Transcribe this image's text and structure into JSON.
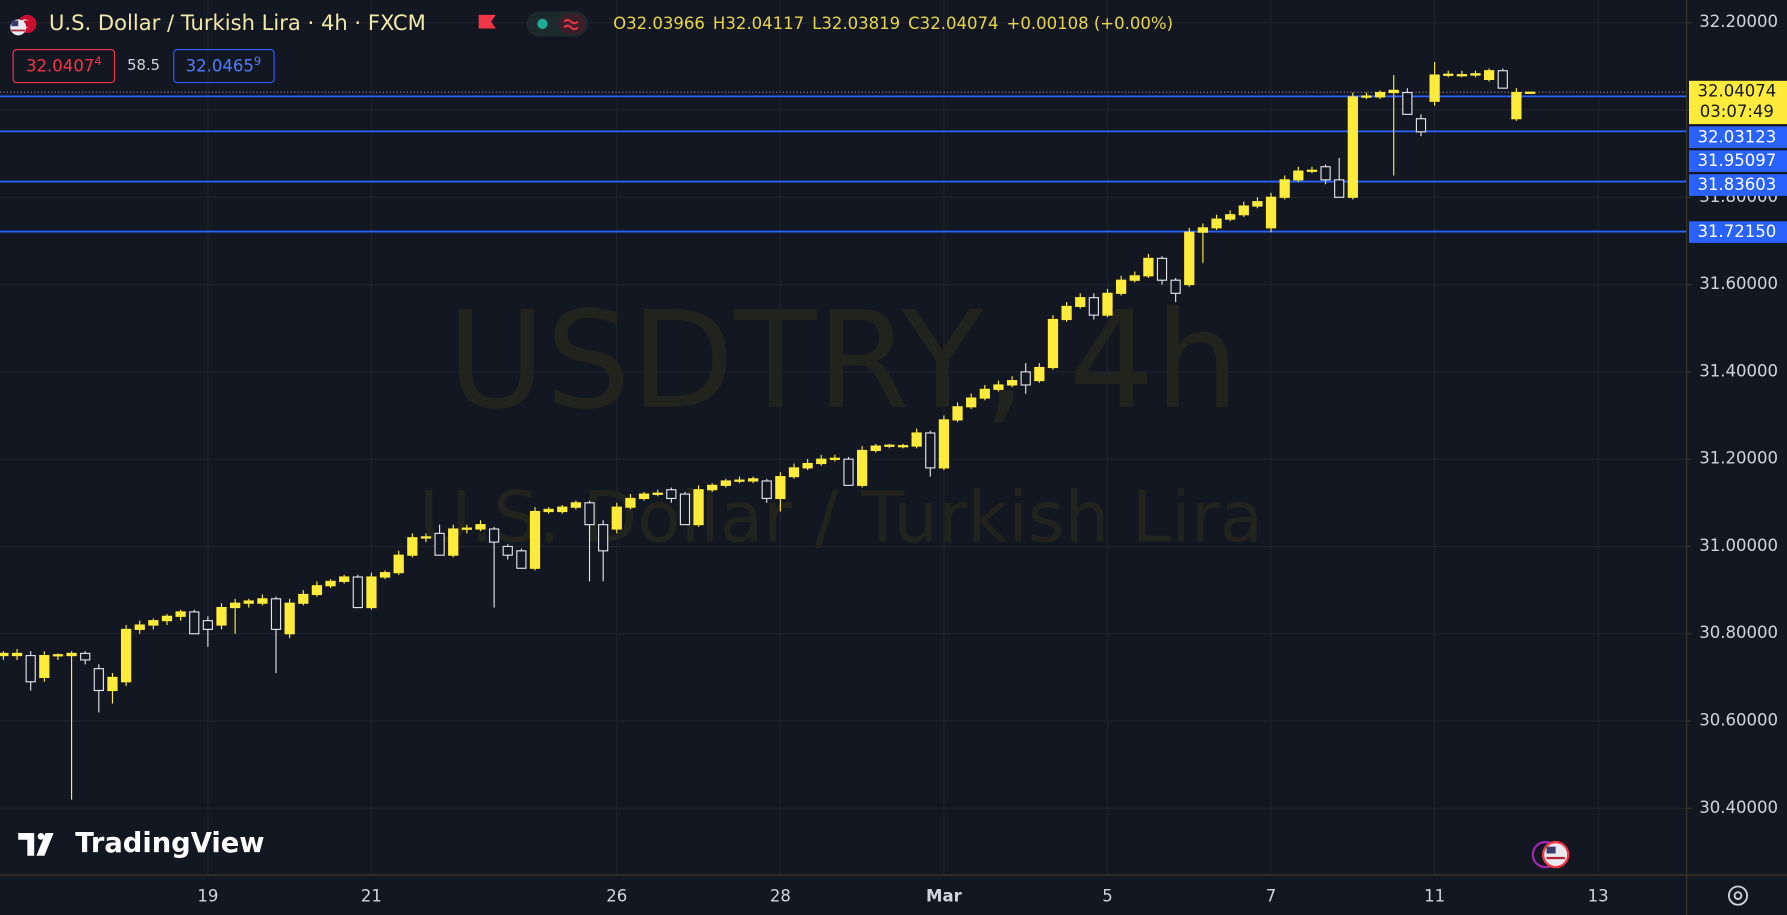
{
  "header": {
    "title": "U.S. Dollar / Turkish Lira · 4h · FXCM",
    "ohlc": [
      "O32.03966",
      "H32.04117",
      "L32.03819",
      "C32.04074",
      "+0.00108 (+0.00%)"
    ],
    "bid": "32.0407",
    "bid_pip": "4",
    "spread": "58.5",
    "ask": "32.0465",
    "ask_pip": "9"
  },
  "watermark": [
    "USDTRY, 4h",
    "U.S. Dollar / Turkish Lira"
  ],
  "logo": "TradingView",
  "chart_data": {
    "type": "candlestick",
    "categories": [
      null,
      null,
      null,
      null,
      null,
      null,
      null,
      null,
      null,
      null,
      null,
      null,
      null,
      null,
      null,
      "19",
      null,
      null,
      null,
      null,
      null,
      null,
      null,
      null,
      null,
      null,
      null,
      "21",
      null,
      null,
      null,
      null,
      null,
      null,
      null,
      null,
      null,
      null,
      null,
      null,
      null,
      null,
      null,
      null,
      null,
      "26",
      null,
      null,
      null,
      null,
      null,
      null,
      null,
      null,
      null,
      null,
      null,
      "28",
      null,
      null,
      null,
      null,
      null,
      null,
      null,
      null,
      null,
      null,
      null,
      "Mar",
      null,
      null,
      null,
      null,
      null,
      null,
      null,
      null,
      null,
      null,
      null,
      "5",
      null,
      null,
      null,
      null,
      null,
      null,
      null,
      null,
      null,
      null,
      null,
      "7",
      null,
      null,
      null,
      null,
      null,
      null,
      null,
      null,
      null,
      null,
      null,
      "11",
      null,
      null,
      null,
      null,
      null,
      null,
      null,
      null,
      null,
      null,
      null,
      "13"
    ],
    "candles": [
      [
        30.75,
        30.76,
        30.74,
        30.755
      ],
      [
        30.75,
        30.765,
        30.74,
        30.755
      ],
      [
        30.75,
        30.76,
        30.67,
        30.69
      ],
      [
        30.7,
        30.76,
        30.69,
        30.75
      ],
      [
        30.75,
        30.755,
        30.74,
        30.752
      ],
      [
        30.75,
        30.76,
        30.42,
        30.755
      ],
      [
        30.755,
        30.76,
        30.73,
        30.74
      ],
      [
        30.72,
        30.73,
        30.62,
        30.67
      ],
      [
        30.67,
        30.71,
        30.64,
        30.7
      ],
      [
        30.69,
        30.82,
        30.68,
        30.81
      ],
      [
        30.81,
        30.83,
        30.8,
        30.82
      ],
      [
        30.82,
        30.835,
        30.81,
        30.83
      ],
      [
        30.83,
        30.845,
        30.82,
        30.84
      ],
      [
        30.84,
        30.855,
        30.83,
        30.85
      ],
      [
        30.85,
        30.855,
        30.8,
        30.8
      ],
      [
        30.83,
        30.84,
        30.77,
        30.81
      ],
      [
        30.82,
        30.87,
        30.81,
        30.86
      ],
      [
        30.86,
        30.88,
        30.8,
        30.87
      ],
      [
        30.87,
        30.88,
        30.86,
        30.875
      ],
      [
        30.87,
        30.89,
        30.865,
        30.88
      ],
      [
        30.88,
        30.885,
        30.71,
        30.81
      ],
      [
        30.8,
        30.88,
        30.79,
        30.87
      ],
      [
        30.87,
        30.9,
        30.865,
        30.89
      ],
      [
        30.89,
        30.92,
        30.885,
        30.91
      ],
      [
        30.91,
        30.925,
        30.905,
        30.92
      ],
      [
        30.92,
        30.935,
        30.915,
        30.93
      ],
      [
        30.93,
        30.935,
        30.86,
        30.86
      ],
      [
        30.86,
        30.94,
        30.855,
        30.93
      ],
      [
        30.93,
        30.945,
        30.925,
        30.94
      ],
      [
        30.94,
        30.99,
        30.935,
        30.98
      ],
      [
        30.98,
        31.03,
        30.975,
        31.02
      ],
      [
        31.02,
        31.03,
        31.01,
        31.022
      ],
      [
        31.03,
        31.05,
        30.98,
        30.98
      ],
      [
        30.98,
        31.05,
        30.975,
        31.04
      ],
      [
        31.04,
        31.05,
        31.03,
        31.042
      ],
      [
        31.04,
        31.06,
        31.035,
        31.05
      ],
      [
        31.04,
        31.045,
        30.86,
        31.01
      ],
      [
        31.0,
        31.005,
        30.97,
        30.98
      ],
      [
        30.99,
        30.995,
        30.95,
        30.95
      ],
      [
        30.95,
        31.09,
        30.945,
        31.08
      ],
      [
        31.08,
        31.09,
        31.075,
        31.085
      ],
      [
        31.08,
        31.095,
        31.075,
        31.09
      ],
      [
        31.09,
        31.105,
        31.085,
        31.1
      ],
      [
        31.1,
        31.105,
        30.92,
        31.05
      ],
      [
        31.05,
        31.06,
        30.92,
        30.99
      ],
      [
        31.04,
        31.1,
        31.03,
        31.09
      ],
      [
        31.09,
        31.12,
        31.085,
        31.11
      ],
      [
        31.11,
        31.125,
        31.105,
        31.12
      ],
      [
        31.12,
        31.13,
        31.115,
        31.122
      ],
      [
        31.13,
        31.135,
        31.1,
        31.11
      ],
      [
        31.12,
        31.125,
        31.05,
        31.05
      ],
      [
        31.05,
        31.14,
        31.045,
        31.13
      ],
      [
        31.13,
        31.145,
        31.125,
        31.14
      ],
      [
        31.14,
        31.155,
        31.135,
        31.15
      ],
      [
        31.15,
        31.16,
        31.145,
        31.152
      ],
      [
        31.15,
        31.16,
        31.145,
        31.155
      ],
      [
        31.15,
        31.155,
        31.1,
        31.11
      ],
      [
        31.11,
        31.17,
        31.08,
        31.16
      ],
      [
        31.16,
        31.19,
        31.155,
        31.18
      ],
      [
        31.18,
        31.2,
        31.175,
        31.19
      ],
      [
        31.19,
        31.21,
        31.185,
        31.2
      ],
      [
        31.2,
        31.21,
        31.195,
        31.202
      ],
      [
        31.2,
        31.205,
        31.14,
        31.14
      ],
      [
        31.14,
        31.23,
        31.135,
        31.22
      ],
      [
        31.22,
        31.235,
        31.215,
        31.23
      ],
      [
        31.23,
        31.235,
        31.225,
        31.232
      ],
      [
        31.23,
        31.235,
        31.225,
        31.231
      ],
      [
        31.23,
        31.27,
        31.225,
        31.26
      ],
      [
        31.26,
        31.265,
        31.16,
        31.18
      ],
      [
        31.18,
        31.3,
        31.175,
        31.29
      ],
      [
        31.29,
        31.33,
        31.285,
        31.32
      ],
      [
        31.32,
        31.35,
        31.315,
        31.34
      ],
      [
        31.34,
        31.37,
        31.335,
        31.36
      ],
      [
        31.36,
        31.38,
        31.355,
        31.37
      ],
      [
        31.37,
        31.39,
        31.365,
        31.38
      ],
      [
        31.4,
        31.42,
        31.35,
        31.37
      ],
      [
        31.38,
        31.42,
        31.375,
        31.41
      ],
      [
        31.41,
        31.53,
        31.405,
        31.52
      ],
      [
        31.52,
        31.56,
        31.515,
        31.55
      ],
      [
        31.55,
        31.58,
        31.545,
        31.57
      ],
      [
        31.57,
        31.58,
        31.52,
        31.53
      ],
      [
        31.53,
        31.59,
        31.525,
        31.58
      ],
      [
        31.58,
        31.62,
        31.575,
        31.61
      ],
      [
        31.61,
        31.63,
        31.605,
        31.62
      ],
      [
        31.62,
        31.67,
        31.615,
        31.66
      ],
      [
        31.66,
        31.665,
        31.6,
        31.61
      ],
      [
        31.61,
        31.615,
        31.56,
        31.58
      ],
      [
        31.6,
        31.73,
        31.595,
        31.72
      ],
      [
        31.72,
        31.74,
        31.65,
        31.73
      ],
      [
        31.73,
        31.76,
        31.725,
        31.75
      ],
      [
        31.75,
        31.77,
        31.745,
        31.76
      ],
      [
        31.76,
        31.79,
        31.755,
        31.78
      ],
      [
        31.78,
        31.8,
        31.775,
        31.79
      ],
      [
        31.73,
        31.81,
        31.72,
        31.8
      ],
      [
        31.8,
        31.85,
        31.795,
        31.84
      ],
      [
        31.84,
        31.87,
        31.835,
        31.86
      ],
      [
        31.86,
        31.87,
        31.855,
        31.862
      ],
      [
        31.87,
        31.875,
        31.83,
        31.84
      ],
      [
        31.84,
        31.89,
        31.8,
        31.8
      ],
      [
        31.8,
        32.04,
        31.795,
        32.03
      ],
      [
        32.03,
        32.04,
        32.025,
        32.032
      ],
      [
        32.03,
        32.045,
        32.025,
        32.04
      ],
      [
        32.04,
        32.08,
        31.85,
        32.045
      ],
      [
        32.04,
        32.05,
        31.99,
        31.99
      ],
      [
        31.98,
        31.99,
        31.94,
        31.95
      ],
      [
        32.02,
        32.11,
        32.01,
        32.08
      ],
      [
        32.08,
        32.09,
        32.075,
        32.082
      ],
      [
        32.08,
        32.09,
        32.075,
        32.081
      ],
      [
        32.08,
        32.09,
        32.075,
        32.083
      ],
      [
        32.07,
        32.095,
        32.065,
        32.09
      ],
      [
        32.09,
        32.095,
        32.05,
        32.05
      ],
      [
        31.98,
        32.05,
        31.975,
        32.04
      ],
      [
        32.03966,
        32.04117,
        32.03819,
        32.04074
      ],
      null,
      null,
      null,
      null,
      null
    ],
    "up_color": "#ffeb3b",
    "down_color": "#e0e3eb",
    "ylim": [
      30.247,
      32.252
    ],
    "yticks": [
      {
        "value": 30.4,
        "label": "30.40000"
      },
      {
        "value": 30.6,
        "label": "30.60000"
      },
      {
        "value": 30.8,
        "label": "30.80000"
      },
      {
        "value": 31.0,
        "label": "31.00000"
      },
      {
        "value": 31.2,
        "label": "31.20000"
      },
      {
        "value": 31.4,
        "label": "31.40000"
      },
      {
        "value": 31.6,
        "label": "31.60000"
      },
      {
        "value": 31.8,
        "label": "31.80000"
      },
      {
        "value": 32.0,
        "label": "32.00000"
      },
      {
        "value": 32.2,
        "label": "32.20000"
      }
    ],
    "grid": true,
    "last_price": {
      "value": 32.04074,
      "label": "32.04074"
    },
    "countdown": "03:07:49",
    "level_color": "#2962ff",
    "levels": [
      {
        "value": 32.03123,
        "label": "32.03123"
      },
      {
        "value": 31.95097,
        "label": "31.95097"
      },
      {
        "value": 31.83603,
        "label": "31.83603"
      },
      {
        "value": 31.7215,
        "label": "31.72150"
      }
    ]
  }
}
